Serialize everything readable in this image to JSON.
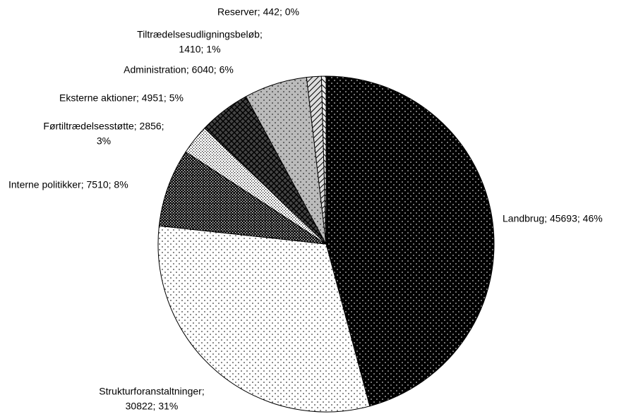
{
  "chart_data": {
    "type": "pie",
    "categories": [
      "Landbrug",
      "Strukturforanstaltninger",
      "Interne politikker",
      "Førtiltrædelsesstøtte",
      "Eksterne aktioner",
      "Administration",
      "Tiltrædelsesudligningsbeløb",
      "Reserver"
    ],
    "values": [
      45693,
      30822,
      7510,
      2856,
      4951,
      6040,
      1410,
      442
    ],
    "value_labels": [
      [
        "Landbrug; 45693; 46%"
      ],
      [
        "Strukturforanstaltninger;",
        "30822; 31%"
      ],
      [
        "Interne politikker; 7510; 8%"
      ],
      [
        "Førtiltrædelsesstøtte; 2856;",
        "3%"
      ],
      [
        "Eksterne aktioner; 4951; 5%"
      ],
      [
        "Administration; 6040; 6%"
      ],
      [
        "Tiltrædelsesudligningsbeløb;",
        "1410; 1%"
      ],
      [
        "Reserver; 442; 0%"
      ]
    ],
    "colors": [
      "#000000",
      "#ffffff",
      "#111111",
      "#ffffff",
      "#444444",
      "#bbbbbb",
      "#dddddd",
      "#eeeeee"
    ]
  }
}
